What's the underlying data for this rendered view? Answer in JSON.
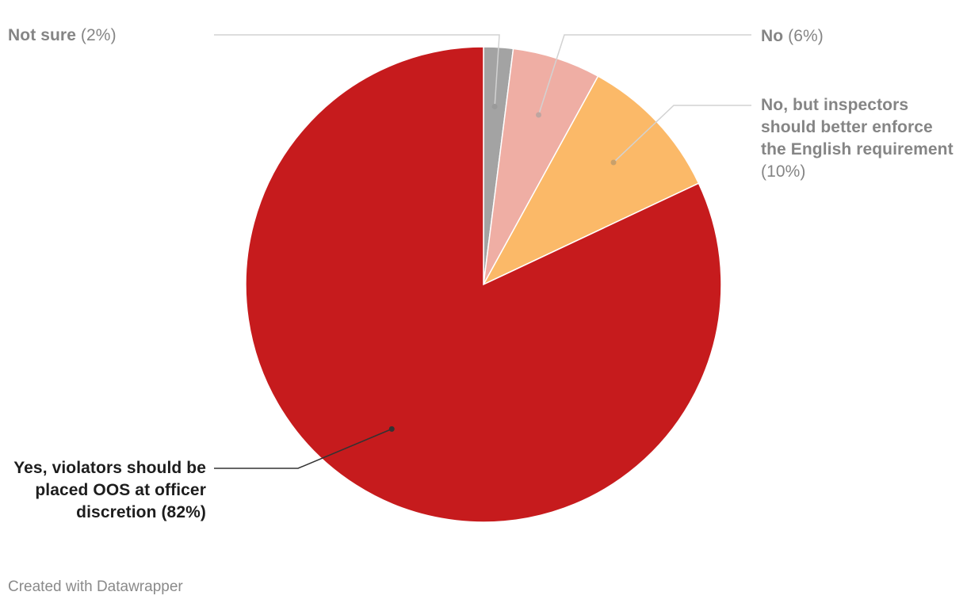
{
  "chart_data": {
    "type": "pie",
    "start_angle_deg": 0,
    "direction": "clockwise",
    "slices": [
      {
        "label": "Not sure",
        "percent_label": "(2%)",
        "value": 2,
        "color": "#a3a3a3"
      },
      {
        "label": "No",
        "percent_label": "(6%)",
        "value": 6,
        "color": "#efaea4"
      },
      {
        "label": "No, but inspectors should better enforce the English requirement",
        "percent_label": "(10%)",
        "value": 10,
        "color": "#fbb968"
      },
      {
        "label": "Yes, violators should be placed OOS at officer discretion",
        "percent_label": "(82%)",
        "value": 82,
        "color": "#c61b1d"
      }
    ]
  },
  "footer": "Created with Datawrapper"
}
